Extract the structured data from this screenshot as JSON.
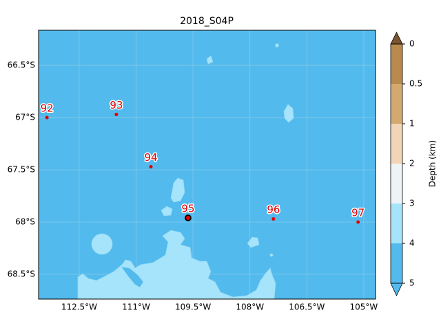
{
  "chart_data": {
    "type": "map",
    "title": "2018_S04P",
    "xlim": [
      -113.57,
      -104.69
    ],
    "ylim": [
      -68.737,
      -66.164
    ],
    "xticks": [
      {
        "value": -112.5,
        "label": "112.5°W"
      },
      {
        "value": -111,
        "label": "111°W"
      },
      {
        "value": -109.5,
        "label": "109.5°W"
      },
      {
        "value": -108,
        "label": "108°W"
      },
      {
        "value": -106.5,
        "label": "106.5°W"
      },
      {
        "value": -105,
        "label": "105°W"
      }
    ],
    "yticks": [
      {
        "value": -66.5,
        "label": "66.5°S"
      },
      {
        "value": -67,
        "label": "67°S"
      },
      {
        "value": -67.5,
        "label": "67.5°S"
      },
      {
        "value": -68,
        "label": "68°S"
      },
      {
        "value": -68.5,
        "label": "68.5°S"
      }
    ],
    "grid": true,
    "ocean_color": "#52baed",
    "point_color": "#e00000",
    "stations": [
      {
        "name": "92",
        "lon": -113.35,
        "lat": -67.0
      },
      {
        "name": "93",
        "lon": -111.52,
        "lat": -66.97
      },
      {
        "name": "94",
        "lon": -110.61,
        "lat": -67.47
      },
      {
        "name": "95",
        "lon": -109.63,
        "lat": -67.96,
        "highlight": true
      },
      {
        "name": "96",
        "lon": -107.38,
        "lat": -67.97
      },
      {
        "name": "97",
        "lon": -105.15,
        "lat": -68.0
      }
    ],
    "colorbar": {
      "label": "Depth (km)",
      "ticks": [
        0,
        0.5,
        1,
        2,
        3,
        4,
        5
      ],
      "colors": [
        "#b88a4e",
        "#d4a96f",
        "#f1d5b6",
        "#eef3f7",
        "#a6e4fb",
        "#52baed"
      ],
      "extend_colors": [
        "#7a5532",
        "#52baed"
      ]
    }
  }
}
